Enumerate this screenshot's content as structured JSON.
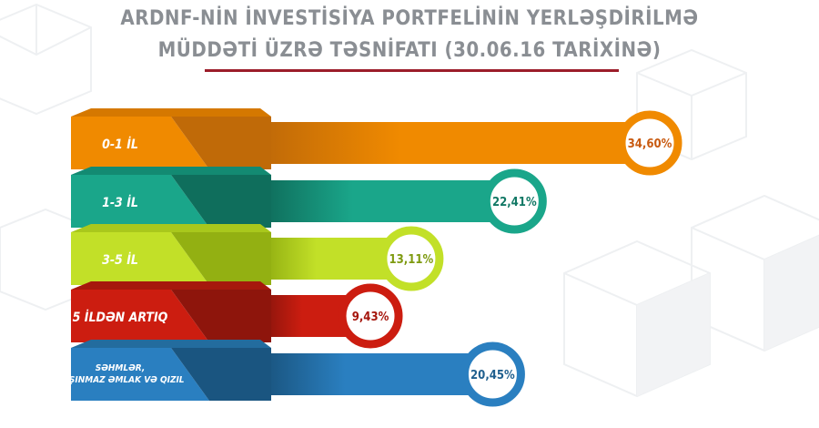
{
  "title": {
    "line1": "ARDNF-NİN İNVESTİSİYA PORTFELİNİN YERLƏŞDİRİLMƏ",
    "line2": "MÜDDƏTİ ÜZRƏ TƏSNİFATI (30.06.16 TARİXİNƏ)"
  },
  "colors": {
    "title": "#8a8e93",
    "underline": "#9c1d2a"
  },
  "chart_data": {
    "type": "bar",
    "orientation": "horizontal",
    "unit": "%",
    "xlim": [
      0,
      34.6
    ],
    "categories": [
      "0-1 İL",
      "1-3 İL",
      "3-5 İL",
      "5 İLDƏN ARTIQ",
      "SƏHMLƏR, DAŞINMAZ ƏMLAK VƏ QIZIL"
    ],
    "category_lines": [
      [
        "0-1 İL"
      ],
      [
        "1-3 İL"
      ],
      [
        "3-5 İL"
      ],
      [
        "5 İLDƏN ARTIQ"
      ],
      [
        "SƏHMLƏR,",
        "DAŞINMAZ ƏMLAK  VƏ QIZIL"
      ]
    ],
    "values": [
      34.6,
      22.41,
      13.11,
      9.43,
      20.45
    ],
    "labels": [
      "34,60%",
      "22,41%",
      "13,11%",
      "9,43%",
      "20,45%"
    ],
    "colors": [
      {
        "main": "#f08a00",
        "dark": "#c06a08",
        "top": "#d57800",
        "text": "#c85a10"
      },
      {
        "main": "#1aa68a",
        "dark": "#0f6e5c",
        "top": "#138a72",
        "text": "#127865"
      },
      {
        "main": "#c2e028",
        "dark": "#93b012",
        "top": "#a9c81c",
        "text": "#7e9a10"
      },
      {
        "main": "#cc1d10",
        "dark": "#8e150c",
        "top": "#a6180d",
        "text": "#a5150c"
      },
      {
        "main": "#2a7fc0",
        "dark": "#1a5580",
        "top": "#236c9e",
        "text": "#1f5f8e"
      }
    ]
  }
}
